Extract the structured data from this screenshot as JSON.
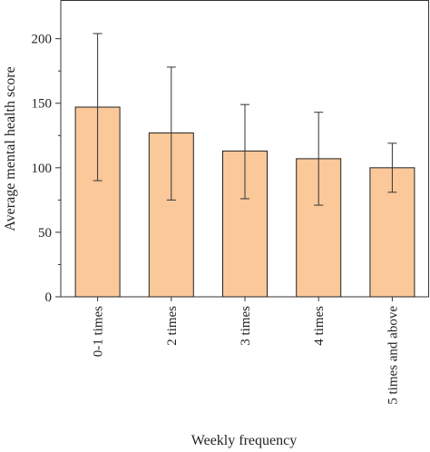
{
  "chart_data": {
    "type": "bar",
    "xlabel": "Weekly frequency",
    "ylabel": "Average mental health score",
    "ylim": [
      0,
      230
    ],
    "yticks": [
      0,
      50,
      100,
      150,
      200
    ],
    "categories": [
      "0-1 times",
      "2 times",
      "3 times",
      "4 times",
      "5 times and above"
    ],
    "values": [
      147,
      127,
      113,
      107,
      100
    ],
    "error_bars": [
      {
        "low": 90,
        "high": 204
      },
      {
        "low": 75,
        "high": 178
      },
      {
        "low": 76,
        "high": 149
      },
      {
        "low": 71,
        "high": 143
      },
      {
        "low": 81,
        "high": 119
      }
    ],
    "grid": false,
    "bar_color": "#fbc89a",
    "bar_edge_color": "#222222"
  }
}
